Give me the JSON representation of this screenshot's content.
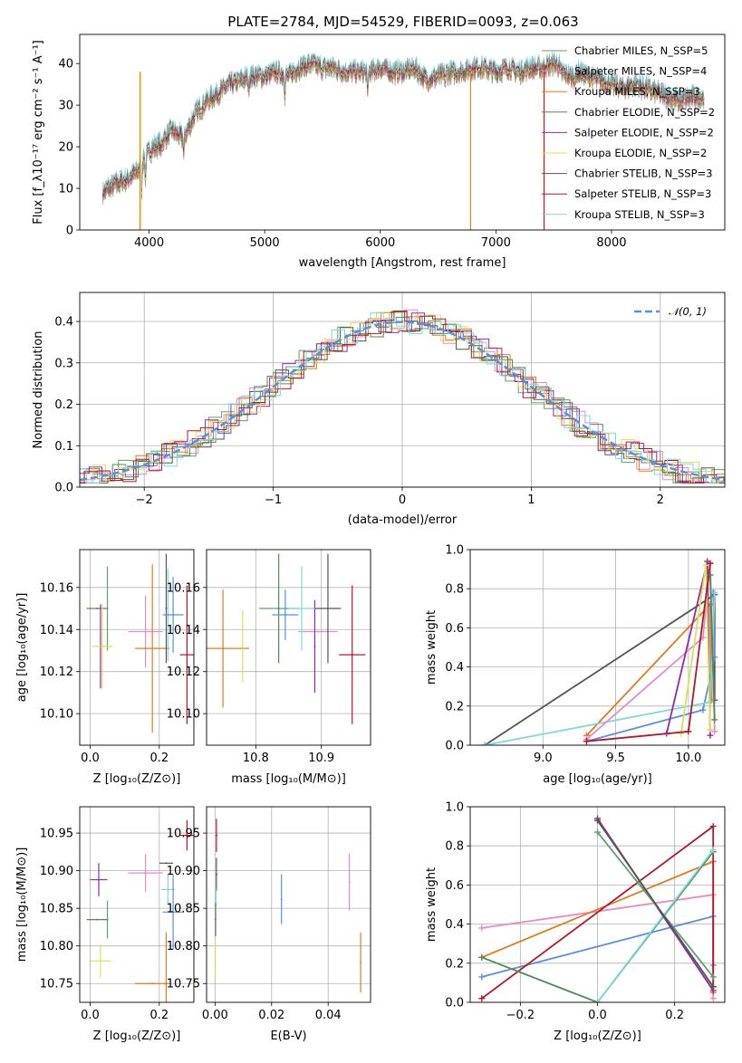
{
  "figure": {
    "title": "PLATE=2784, MJD=54529, FIBERID=0093, z=0.063",
    "colors": {
      "Chabrier MILES": "#5f9e6e",
      "Salpeter MILES": "#e78ac3",
      "Kroupa MILES": "#e07b1f",
      "Chabrier ELODIE": "#4f8a55",
      "Salpeter ELODIE": "#8c2bb0",
      "Kroupa ELODIE": "#d8e05a",
      "Chabrier STELIB": "#555555",
      "Salpeter STELIB": "#b2182b",
      "Kroupa STELIB": "#7fd8d8"
    }
  },
  "chart_data": [
    {
      "id": "spectrum",
      "type": "line",
      "xlabel": "wavelength [Angstrom, rest frame]",
      "ylabel": "Flux [f_λ10⁻¹⁷ erg cm⁻² s⁻¹ A⁻¹]",
      "xlim": [
        3400,
        8980
      ],
      "ylim": [
        0,
        47
      ],
      "xticks": [
        4000,
        5000,
        6000,
        7000,
        8000
      ],
      "yticks": [
        0,
        10,
        20,
        30,
        40
      ],
      "legend_position": "upper right",
      "legend": [
        {
          "label": "Chabrier MILES, N_SSP=5",
          "color": "#5f9e6e"
        },
        {
          "label": "Salpeter MILES, N_SSP=4",
          "color": "#e78ac3"
        },
        {
          "label": "Kroupa MILES, N_SSP=3",
          "color": "#e07b1f"
        },
        {
          "label": "Chabrier ELODIE, N_SSP=2",
          "color": "#4f8a55"
        },
        {
          "label": "Salpeter ELODIE, N_SSP=2",
          "color": "#8c2bb0"
        },
        {
          "label": "Kroupa ELODIE, N_SSP=2",
          "color": "#d8e05a"
        },
        {
          "label": "Chabrier STELIB, N_SSP=3",
          "color": "#555555"
        },
        {
          "label": "Salpeter STELIB, N_SSP=3",
          "color": "#b2182b"
        },
        {
          "label": "Kroupa STELIB, N_SSP=3",
          "color": "#7fd8d8"
        }
      ],
      "continuum": [
        [
          3600,
          9
        ],
        [
          3700,
          11
        ],
        [
          3800,
          12
        ],
        [
          3900,
          14
        ],
        [
          4000,
          19
        ],
        [
          4100,
          21
        ],
        [
          4200,
          24
        ],
        [
          4300,
          22
        ],
        [
          4400,
          28
        ],
        [
          4500,
          31
        ],
        [
          4600,
          33
        ],
        [
          4700,
          35
        ],
        [
          4800,
          36
        ],
        [
          4900,
          37
        ],
        [
          5000,
          37
        ],
        [
          5100,
          38
        ],
        [
          5200,
          37
        ],
        [
          5300,
          39
        ],
        [
          5400,
          40
        ],
        [
          5500,
          39
        ],
        [
          5600,
          39
        ],
        [
          5700,
          38
        ],
        [
          5800,
          38
        ],
        [
          5900,
          38
        ],
        [
          6000,
          39
        ],
        [
          6100,
          38
        ],
        [
          6200,
          38
        ],
        [
          6300,
          39
        ],
        [
          6400,
          36
        ],
        [
          6500,
          37
        ],
        [
          6600,
          38
        ],
        [
          6700,
          38
        ],
        [
          6800,
          39
        ],
        [
          6900,
          39
        ],
        [
          7000,
          38
        ],
        [
          7100,
          39
        ],
        [
          7200,
          38
        ],
        [
          7300,
          39
        ],
        [
          7400,
          39
        ],
        [
          7500,
          40
        ],
        [
          7600,
          39
        ],
        [
          7700,
          38
        ],
        [
          7800,
          37
        ],
        [
          7900,
          36
        ],
        [
          8000,
          35
        ],
        [
          8100,
          34
        ],
        [
          8200,
          35
        ],
        [
          8300,
          34
        ],
        [
          8400,
          33
        ],
        [
          8500,
          32
        ],
        [
          8600,
          31
        ],
        [
          8700,
          32
        ],
        [
          8800,
          32
        ]
      ]
    },
    {
      "id": "residuals",
      "type": "line",
      "xlabel": "(data-model)/error",
      "ylabel": "Normed distribution",
      "xlim": [
        -2.5,
        2.5
      ],
      "ylim": [
        0,
        0.47
      ],
      "xticks": [
        -2,
        -1,
        0,
        1,
        2
      ],
      "yticks": [
        0.0,
        0.1,
        0.2,
        0.3,
        0.4
      ],
      "reference": {
        "label": "𝒩(0, 1)",
        "color": "#5b8fd9",
        "mean": 0,
        "sigma": 1
      }
    },
    {
      "id": "age_vs_z",
      "type": "scatter",
      "xlabel": "Z [log₁₀(Z/Z⊙)]",
      "ylabel": "age  [log₁₀(age/yr)]",
      "xlim": [
        -0.03,
        0.3
      ],
      "ylim": [
        10.085,
        10.178
      ],
      "xticks": [
        0.0,
        0.2
      ],
      "yticks": [
        10.1,
        10.12,
        10.14,
        10.16
      ],
      "points": [
        {
          "color": "#5f9e6e",
          "x": 0.05,
          "y": 10.15,
          "xerr": 0.0,
          "yerr": 0.02
        },
        {
          "color": "#e78ac3",
          "x": 0.16,
          "y": 10.139,
          "xerr": 0.05,
          "yerr": 0.017
        },
        {
          "color": "#e07b1f",
          "x": 0.18,
          "y": 10.131,
          "xerr": 0.05,
          "yerr": 0.04
        },
        {
          "color": "#4f8a55",
          "x": 0.02,
          "y": 10.15,
          "xerr": 0.03,
          "yerr": 0.0
        },
        {
          "color": "#8c2bb0",
          "x": 0.03,
          "y": 10.132,
          "xerr": 0.0,
          "yerr": 0.02
        },
        {
          "color": "#d8e05a",
          "x": 0.035,
          "y": 10.132,
          "xerr": 0.03,
          "yerr": 0.02
        },
        {
          "color": "#555555",
          "x": 0.22,
          "y": 10.15,
          "xerr": 0.0,
          "yerr": 0.026
        },
        {
          "color": "#b2182b",
          "x": 0.28,
          "y": 10.128,
          "xerr": 0.02,
          "yerr": 0.033
        },
        {
          "color": "#7fd8d8",
          "x": 0.225,
          "y": 10.147,
          "xerr": 0.0,
          "yerr": 0.022
        },
        {
          "color": "#5b8fd9",
          "x": 0.24,
          "y": 10.147,
          "xerr": 0.03,
          "yerr": 0.018
        }
      ]
    },
    {
      "id": "age_vs_mass",
      "type": "scatter",
      "xlabel": "mass [log₁₀(M/M⊙)]",
      "ylabel": "",
      "xlim": [
        10.725,
        10.975
      ],
      "ylim": [
        10.085,
        10.178
      ],
      "xticks": [
        10.8,
        10.9
      ],
      "yticks": [
        10.1,
        10.12,
        10.14,
        10.16
      ],
      "points": [
        {
          "color": "#5f9e6e",
          "x": 10.835,
          "y": 10.15,
          "xerr": 0.03,
          "yerr": 0.0
        },
        {
          "color": "#e78ac3",
          "x": 10.895,
          "y": 10.139,
          "xerr": 0.03,
          "yerr": 0.0
        },
        {
          "color": "#e07b1f",
          "x": 10.75,
          "y": 10.131,
          "xerr": 0.04,
          "yerr": 0.028
        },
        {
          "color": "#4f8a55",
          "x": 10.835,
          "y": 10.15,
          "xerr": 0.0,
          "yerr": 0.026
        },
        {
          "color": "#8c2bb0",
          "x": 10.89,
          "y": 10.132,
          "xerr": 0.0,
          "yerr": 0.022
        },
        {
          "color": "#d8e05a",
          "x": 10.78,
          "y": 10.132,
          "xerr": 0.0,
          "yerr": 0.017
        },
        {
          "color": "#555555",
          "x": 10.91,
          "y": 10.15,
          "xerr": 0.02,
          "yerr": 0.026
        },
        {
          "color": "#b2182b",
          "x": 10.947,
          "y": 10.128,
          "xerr": 0.02,
          "yerr": 0.033
        },
        {
          "color": "#7fd8d8",
          "x": 10.87,
          "y": 10.15,
          "xerr": 0.02,
          "yerr": 0.02
        },
        {
          "color": "#5b8fd9",
          "x": 10.845,
          "y": 10.147,
          "xerr": 0.02,
          "yerr": 0.012
        }
      ]
    },
    {
      "id": "weight_vs_age",
      "type": "line",
      "xlabel": "age  [log₁₀(age/yr)]",
      "ylabel": "mass weight",
      "xlim": [
        8.5,
        10.25
      ],
      "ylim": [
        0.0,
        1.0
      ],
      "xticks": [
        9.0,
        9.5,
        10.0
      ],
      "yticks": [
        0.0,
        0.2,
        0.4,
        0.6,
        0.8,
        1.0
      ],
      "series": [
        {
          "color": "#555555",
          "points": [
            [
              8.6,
              0.0
            ],
            [
              10.18,
              0.77
            ],
            [
              10.18,
              0.23
            ]
          ]
        },
        {
          "color": "#e07b1f",
          "points": [
            [
              9.3,
              0.05
            ],
            [
              10.15,
              0.72
            ],
            [
              10.16,
              0.23
            ]
          ]
        },
        {
          "color": "#5b8fd9",
          "points": [
            [
              9.3,
              0.02
            ],
            [
              10.1,
              0.18
            ],
            [
              10.18,
              0.45
            ],
            [
              10.17,
              0.78
            ]
          ]
        },
        {
          "color": "#7fd8d8",
          "points": [
            [
              8.6,
              0.0
            ],
            [
              10.15,
              0.22
            ],
            [
              10.18,
              0.78
            ]
          ]
        },
        {
          "color": "#e78ac3",
          "points": [
            [
              9.3,
              0.03
            ],
            [
              10.1,
              0.55
            ],
            [
              10.15,
              0.93
            ],
            [
              10.18,
              0.07
            ]
          ]
        },
        {
          "color": "#8c2bb0",
          "points": [
            [
              9.85,
              0.06
            ],
            [
              10.13,
              0.94
            ],
            [
              10.15,
              0.05
            ]
          ]
        },
        {
          "color": "#d8e05a",
          "points": [
            [
              9.95,
              0.06
            ],
            [
              10.12,
              0.92
            ],
            [
              10.15,
              0.08
            ]
          ]
        },
        {
          "color": "#b2182b",
          "points": [
            [
              9.3,
              0.02
            ],
            [
              10.0,
              0.07
            ],
            [
              10.15,
              0.93
            ]
          ]
        },
        {
          "color": "#4f8a55",
          "points": [
            [
              10.15,
              0.87
            ],
            [
              10.18,
              0.13
            ]
          ]
        }
      ]
    },
    {
      "id": "mass_vs_z",
      "type": "scatter",
      "xlabel": "Z [log₁₀(Z/Z⊙)]",
      "ylabel": "mass [log₁₀(M/M⊙)]",
      "xlim": [
        -0.03,
        0.3
      ],
      "ylim": [
        10.725,
        10.985
      ],
      "xticks": [
        0.0,
        0.2
      ],
      "yticks": [
        10.75,
        10.8,
        10.85,
        10.9,
        10.95
      ],
      "points": [
        {
          "color": "#5f9e6e",
          "x": 0.05,
          "y": 10.835,
          "xerr": 0.0,
          "yerr": 0.025
        },
        {
          "color": "#e78ac3",
          "x": 0.16,
          "y": 10.897,
          "xerr": 0.05,
          "yerr": 0.025
        },
        {
          "color": "#e07b1f",
          "x": 0.18,
          "y": 10.75,
          "xerr": 0.05,
          "yerr": 0.0
        },
        {
          "color": "#e07b1f",
          "x": 0.22,
          "y": 10.75,
          "xerr": 0.0,
          "yerr": 0.068
        },
        {
          "color": "#4f8a55",
          "x": 0.02,
          "y": 10.835,
          "xerr": 0.03,
          "yerr": 0.0
        },
        {
          "color": "#8c2bb0",
          "x": 0.025,
          "y": 10.888,
          "xerr": 0.025,
          "yerr": 0.022
        },
        {
          "color": "#d8e05a",
          "x": 0.03,
          "y": 10.78,
          "xerr": 0.03,
          "yerr": 0.022
        },
        {
          "color": "#555555",
          "x": 0.22,
          "y": 10.91,
          "xerr": 0.02,
          "yerr": 0.0
        },
        {
          "color": "#b2182b",
          "x": 0.28,
          "y": 10.947,
          "xerr": 0.02,
          "yerr": 0.02
        },
        {
          "color": "#7fd8d8",
          "x": 0.225,
          "y": 10.875,
          "xerr": 0.02,
          "yerr": 0.02
        },
        {
          "color": "#5b8fd9",
          "x": 0.24,
          "y": 10.845,
          "xerr": 0.03,
          "yerr": 0.05
        }
      ]
    },
    {
      "id": "mass_vs_ebv",
      "type": "scatter",
      "xlabel": "E(B-V)",
      "ylabel": "",
      "xlim": [
        -0.003,
        0.055
      ],
      "ylim": [
        10.725,
        10.985
      ],
      "xticks": [
        0.0,
        0.02,
        0.04
      ],
      "yticks": [
        10.75,
        10.8,
        10.85,
        10.9,
        10.95
      ],
      "points": [
        {
          "color": "#b2182b",
          "x": 0.0005,
          "y": 10.947,
          "xerr": 0.0,
          "yerr": 0.022
        },
        {
          "color": "#555555",
          "x": 0.0005,
          "y": 10.895,
          "xerr": 0.0,
          "yerr": 0.022
        },
        {
          "color": "#7fd8d8",
          "x": 0.0003,
          "y": 10.865,
          "xerr": 0.0,
          "yerr": 0.012
        },
        {
          "color": "#4f8a55",
          "x": 0.0002,
          "y": 10.835,
          "xerr": 0.0,
          "yerr": 0.022
        },
        {
          "color": "#d8e05a",
          "x": 0.0001,
          "y": 10.78,
          "xerr": 0.0,
          "yerr": 0.025
        },
        {
          "color": "#5b8fd9",
          "x": 0.0235,
          "y": 10.862,
          "xerr": 0.0,
          "yerr": 0.033
        },
        {
          "color": "#e78ac3",
          "x": 0.0475,
          "y": 10.885,
          "xerr": 0.0,
          "yerr": 0.038
        },
        {
          "color": "#e07b1f",
          "x": 0.0515,
          "y": 10.778,
          "xerr": 0.0,
          "yerr": 0.04
        }
      ]
    },
    {
      "id": "weight_vs_z",
      "type": "line",
      "xlabel": "Z [log₁₀(Z/Z⊙)]",
      "ylabel": "mass weight",
      "xlim": [
        -0.33,
        0.33
      ],
      "ylim": [
        0.0,
        1.0
      ],
      "xticks": [
        -0.2,
        0.0,
        0.2
      ],
      "yticks": [
        0.0,
        0.2,
        0.4,
        0.6,
        0.8,
        1.0
      ],
      "series": [
        {
          "color": "#e78ac3",
          "points": [
            [
              -0.3,
              0.38
            ],
            [
              0.3,
              0.55
            ],
            [
              0.3,
              0.02
            ]
          ]
        },
        {
          "color": "#e07b1f",
          "points": [
            [
              -0.3,
              0.23
            ],
            [
              0.3,
              0.72
            ],
            [
              0.3,
              0.05
            ]
          ]
        },
        {
          "color": "#5b8fd9",
          "points": [
            [
              -0.3,
              0.13
            ],
            [
              0.3,
              0.44
            ],
            [
              0.3,
              0.19
            ]
          ]
        },
        {
          "color": "#b2182b",
          "points": [
            [
              -0.3,
              0.02
            ],
            [
              0.3,
              0.9
            ],
            [
              0.3,
              0.08
            ]
          ]
        },
        {
          "color": "#4f8a55",
          "points": [
            [
              -0.3,
              0.23
            ],
            [
              0.0,
              0.0
            ],
            [
              0.3,
              0.77
            ]
          ]
        },
        {
          "color": "#7fd8d8",
          "points": [
            [
              0.0,
              0.0
            ],
            [
              0.3,
              0.78
            ]
          ]
        },
        {
          "color": "#d8e05a",
          "points": [
            [
              0.0,
              0.94
            ],
            [
              0.3,
              0.07
            ]
          ]
        },
        {
          "color": "#8c2bb0",
          "points": [
            [
              0.0,
              0.94
            ],
            [
              0.3,
              0.06
            ]
          ]
        },
        {
          "color": "#5f9e6e",
          "points": [
            [
              0.0,
              0.87
            ],
            [
              0.3,
              0.13
            ]
          ]
        },
        {
          "color": "#555555",
          "points": [
            [
              0.0,
              0.93
            ],
            [
              0.3,
              0.08
            ]
          ]
        }
      ]
    }
  ]
}
